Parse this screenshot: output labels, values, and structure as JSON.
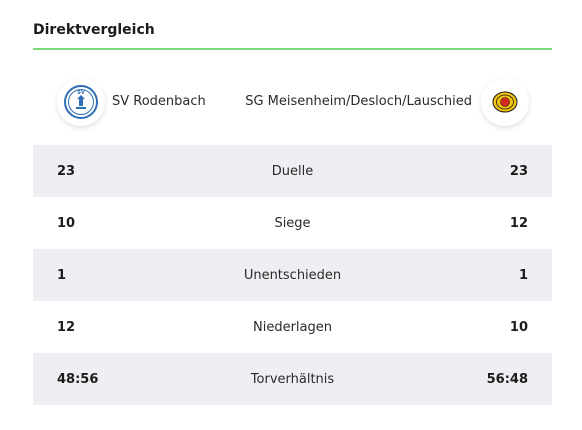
{
  "section": {
    "title": "Direktvergleich"
  },
  "teams": {
    "home": {
      "name": "SV Rodenbach",
      "logo_icon": "sv-rodenbach-crest-icon"
    },
    "away": {
      "name": "SG Meisenheim/Desloch/Lauschied",
      "logo_icon": "sg-meisenheim-crest-icon"
    }
  },
  "stats": [
    {
      "label": "Duelle",
      "home": "23",
      "away": "23"
    },
    {
      "label": "Siege",
      "home": "10",
      "away": "12"
    },
    {
      "label": "Unentschieden",
      "home": "1",
      "away": "1"
    },
    {
      "label": "Niederlagen",
      "home": "12",
      "away": "10"
    },
    {
      "label": "Torverhältnis",
      "home": "48:56",
      "away": "56:48"
    }
  ],
  "colors": {
    "accent_rule": "#7dd87a",
    "row_shade": "#efeff3",
    "home_crest_blue": "#2f6fb5",
    "away_crest_yellow": "#f2c40f",
    "away_crest_red": "#d22a20"
  }
}
